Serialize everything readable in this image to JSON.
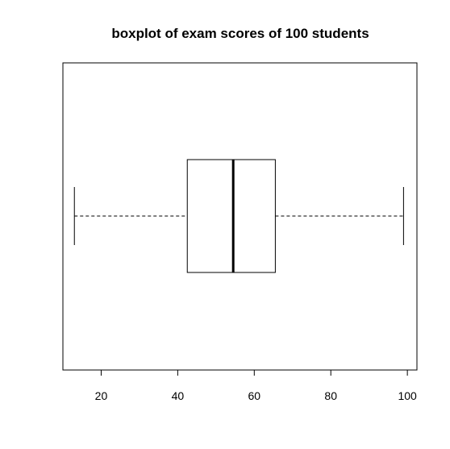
{
  "chart_data": {
    "type": "boxplot",
    "orientation": "horizontal",
    "title": "boxplot of exam scores of 100 students",
    "xlabel": "",
    "ylabel": "",
    "xlim": [
      10,
      102.5
    ],
    "x_ticks": [
      20,
      40,
      60,
      80,
      100
    ],
    "x_tick_labels": [
      "20",
      "40",
      "60",
      "80",
      "100"
    ],
    "grid": false,
    "legend": "none",
    "series": [
      {
        "min": 13,
        "q1": 42.5,
        "median": 54.5,
        "q3": 65.5,
        "max": 99
      }
    ],
    "colors": {
      "stroke": "#000000",
      "box_fill": "#ffffff",
      "background": "#ffffff"
    }
  }
}
